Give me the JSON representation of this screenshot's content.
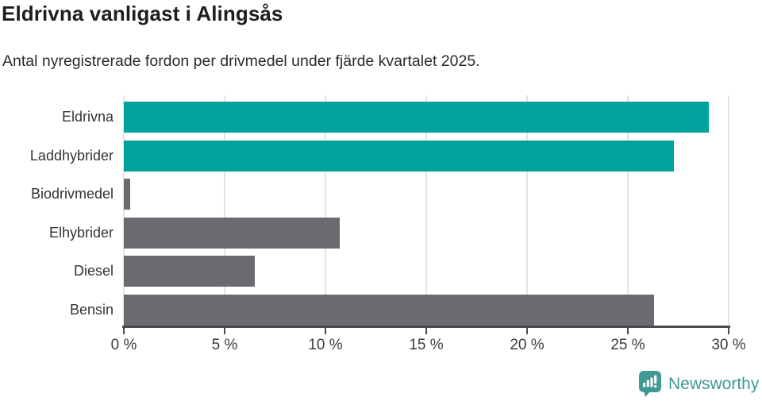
{
  "title": "Eldrivna vanligast i Alingsås",
  "subtitle": "Antal nyregistrerade fordon per drivmedel under fjärde kvartalet 2025.",
  "colors": {
    "teal_bar": "#00a29b",
    "gray_bar": "#6b6a70",
    "gridline": "#e4e4e4",
    "axis": "#4a494f",
    "label_text": "#333338",
    "tick_text": "#3c3c3c",
    "logo_teal": "#3f9a93"
  },
  "chart_data": {
    "type": "bar",
    "orientation": "horizontal",
    "title": "Eldrivna vanligast i Alingsås",
    "subtitle": "Antal nyregistrerade fordon per drivmedel under fjärde kvartalet 2025.",
    "categories": [
      "Eldrivna",
      "Laddhybrider",
      "Biodrivmedel",
      "Elhybrider",
      "Diesel",
      "Bensin"
    ],
    "values": [
      29.0,
      27.3,
      0.3,
      10.7,
      6.5,
      26.3
    ],
    "unit": "%",
    "bar_colors": [
      "#00a29b",
      "#00a29b",
      "#6b6a70",
      "#6b6a70",
      "#6b6a70",
      "#6b6a70"
    ],
    "xlabel": "",
    "ylabel": "",
    "xlim": [
      0,
      30
    ],
    "x_ticks": [
      0,
      5,
      10,
      15,
      20,
      25,
      30
    ],
    "x_tick_labels": [
      "0 %",
      "5 %",
      "10 %",
      "15 %",
      "20 %",
      "25 %",
      "30 %"
    ],
    "grid": true,
    "legend": false
  },
  "branding": {
    "logo_text": "Newsworthy",
    "logo_icon": "bar-chart-speech-bubble-icon"
  }
}
